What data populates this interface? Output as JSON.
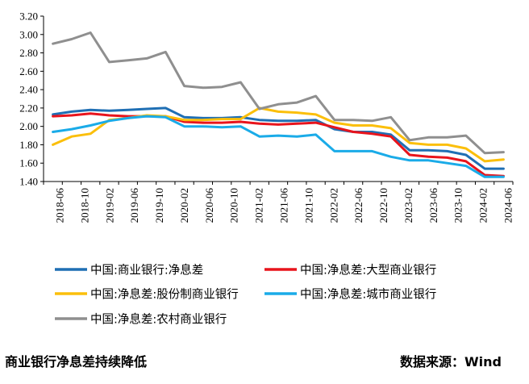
{
  "caption": "商业银行净息差持续降低",
  "source": "数据来源：Wind",
  "chart_data": {
    "type": "line",
    "x": [
      "2018-06",
      "2018-09",
      "2018-12",
      "2019-03",
      "2019-06",
      "2019-09",
      "2019-12",
      "2020-03",
      "2020-06",
      "2020-09",
      "2020-12",
      "2021-03",
      "2021-06",
      "2021-09",
      "2021-12",
      "2022-03",
      "2022-06",
      "2022-09",
      "2022-12",
      "2023-03",
      "2023-06",
      "2023-09",
      "2023-12",
      "2024-03",
      "2024-06"
    ],
    "x_tick_labels": [
      "2018-06",
      "2018-10",
      "2019-02",
      "2019-06",
      "2019-10",
      "2020-02",
      "2020-06",
      "2020-10",
      "2021-02",
      "2021-06",
      "2021-10",
      "2022-02",
      "2022-06",
      "2022-10",
      "2023-02",
      "2023-06",
      "2023-10",
      "2024-02",
      "2024-06"
    ],
    "ylim": [
      1.4,
      3.2
    ],
    "y_ticks": [
      "1.40",
      "1.60",
      "1.80",
      "2.00",
      "2.20",
      "2.40",
      "2.60",
      "2.80",
      "3.00",
      "3.20"
    ],
    "grid": false,
    "legend_position": "bottom",
    "series": [
      {
        "name": "中国:商业银行:净息差",
        "color": "#1f6fb4",
        "values": [
          2.13,
          2.16,
          2.18,
          2.17,
          2.18,
          2.19,
          2.2,
          2.1,
          2.09,
          2.09,
          2.1,
          2.07,
          2.06,
          2.06,
          2.07,
          1.97,
          1.94,
          1.94,
          1.91,
          1.74,
          1.74,
          1.73,
          1.69,
          1.54,
          1.54
        ]
      },
      {
        "name": "中国:净息差:大型商业银行",
        "color": "#e8141c",
        "values": [
          2.11,
          2.12,
          2.14,
          2.12,
          2.11,
          2.11,
          2.11,
          2.05,
          2.04,
          2.04,
          2.05,
          2.03,
          2.02,
          2.03,
          2.04,
          1.99,
          1.94,
          1.92,
          1.89,
          1.69,
          1.67,
          1.66,
          1.62,
          1.47,
          1.46
        ]
      },
      {
        "name": "中国:净息差:股份制商业银行",
        "color": "#fbbf0b",
        "values": [
          1.8,
          1.89,
          1.92,
          2.07,
          2.09,
          2.12,
          2.11,
          2.07,
          2.07,
          2.08,
          2.08,
          2.2,
          2.16,
          2.15,
          2.13,
          2.04,
          2.01,
          2.01,
          1.98,
          1.82,
          1.8,
          1.8,
          1.76,
          1.62,
          1.64
        ]
      },
      {
        "name": "中国:净息差:城市商业银行",
        "color": "#1aabe8",
        "values": [
          1.94,
          1.97,
          2.01,
          2.06,
          2.09,
          2.11,
          2.1,
          2.0,
          2.0,
          1.99,
          2.0,
          1.89,
          1.9,
          1.89,
          1.91,
          1.73,
          1.73,
          1.73,
          1.67,
          1.63,
          1.63,
          1.6,
          1.57,
          1.45,
          1.45
        ]
      },
      {
        "name": "中国:净息差:农村商业银行",
        "color": "#8f8f8f",
        "values": [
          2.9,
          2.95,
          3.02,
          2.7,
          2.72,
          2.74,
          2.81,
          2.44,
          2.42,
          2.43,
          2.48,
          2.19,
          2.24,
          2.26,
          2.33,
          2.07,
          2.07,
          2.06,
          2.1,
          1.85,
          1.88,
          1.88,
          1.9,
          1.71,
          1.72
        ]
      }
    ]
  }
}
